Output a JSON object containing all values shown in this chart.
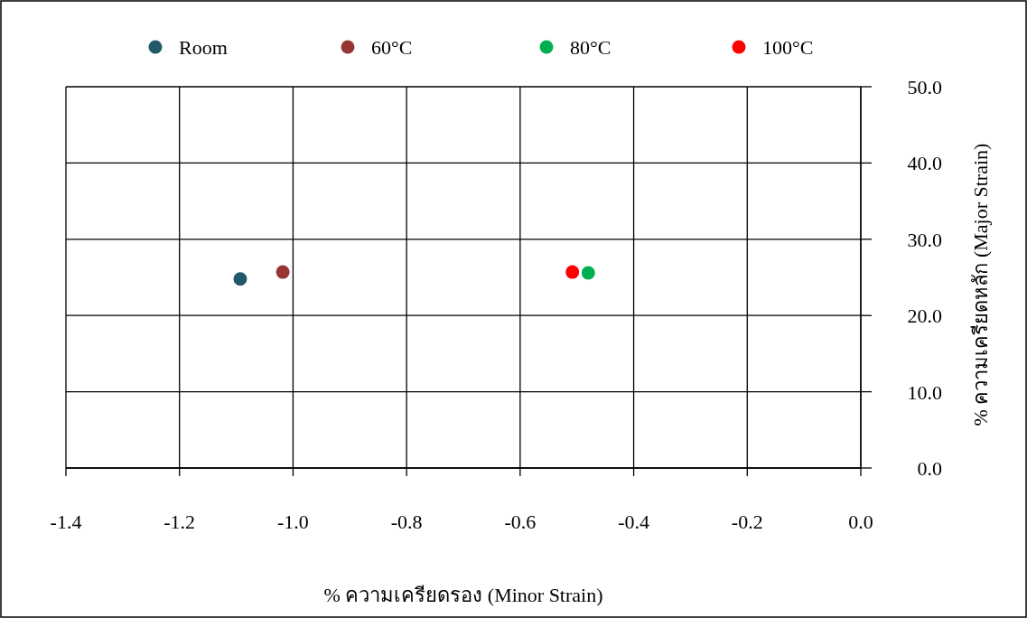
{
  "chart_data": {
    "type": "scatter",
    "xlabel": "% ความเครียดรอง (Minor Strain)",
    "ylabel": "% ความเครียดหลัก (Major Strain)",
    "series": [
      {
        "name": "Room",
        "color": "#215968",
        "x": [
          -1.093
        ],
        "values": [
          24.8
        ]
      },
      {
        "name": "60°C",
        "color": "#943634",
        "x": [
          -1.018
        ],
        "values": [
          25.7
        ]
      },
      {
        "name": "80°C",
        "color": "#00b050",
        "x": [
          -0.48
        ],
        "values": [
          25.6
        ]
      },
      {
        "name": "100°C",
        "color": "#ff0000",
        "x": [
          -0.508
        ],
        "values": [
          25.7
        ]
      }
    ],
    "xlim": [
      -1.4,
      0
    ],
    "ylim": [
      0,
      50
    ],
    "xticks": [
      {
        "value": -1.4,
        "label": "-1.4"
      },
      {
        "value": -1.2,
        "label": "-1.2"
      },
      {
        "value": -1.0,
        "label": "-1.0"
      },
      {
        "value": -0.8,
        "label": "-0.8"
      },
      {
        "value": -0.6,
        "label": "-0.6"
      },
      {
        "value": -0.4,
        "label": "-0.4"
      },
      {
        "value": -0.2,
        "label": "-0.2"
      },
      {
        "value": 0,
        "label": "0.0"
      }
    ],
    "yticks": [
      {
        "value": 0,
        "label": "0.0"
      },
      {
        "value": 10,
        "label": "10.0"
      },
      {
        "value": 20,
        "label": "20.0"
      },
      {
        "value": 30,
        "label": "30.0"
      },
      {
        "value": 40,
        "label": "40.0"
      },
      {
        "value": 50,
        "label": "50.0"
      }
    ],
    "grid": true,
    "legend": "top",
    "marker": "circle"
  }
}
